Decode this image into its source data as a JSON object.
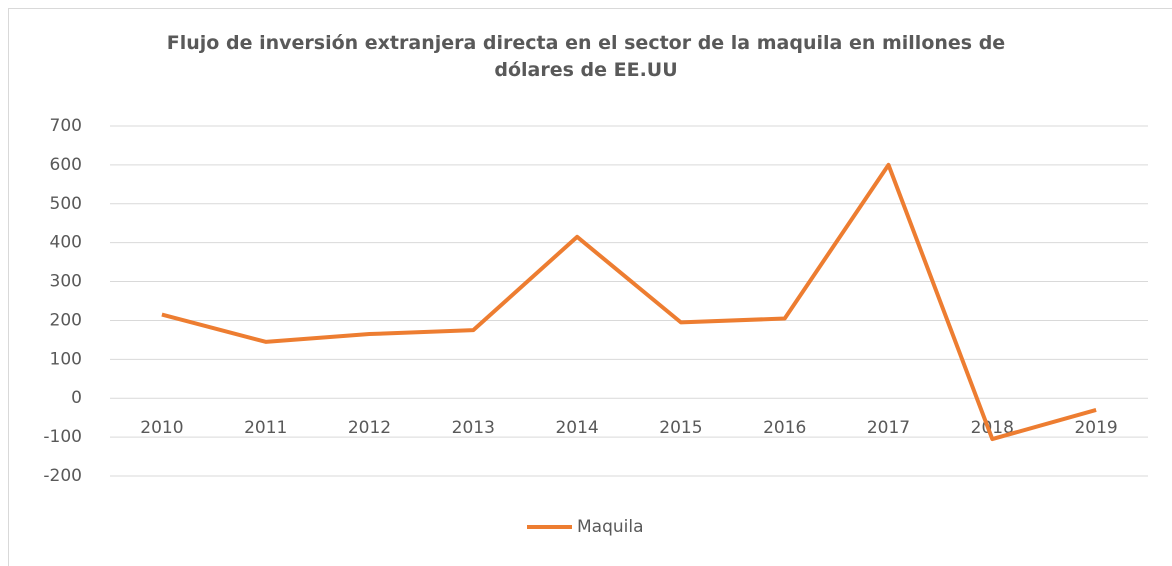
{
  "chart_data": {
    "type": "line",
    "title": "Flujo de inversión extranjera directa en el sector de la maquila en millones de dólares de EE.UU",
    "categories": [
      "2010",
      "2011",
      "2012",
      "2013",
      "2014",
      "2015",
      "2016",
      "2017",
      "2018",
      "2019"
    ],
    "series": [
      {
        "name": "Maquila",
        "color": "#ed7d31",
        "values": [
          215,
          145,
          165,
          175,
          415,
          195,
          205,
          600,
          -105,
          -30
        ]
      }
    ],
    "ylim": [
      -200,
      700
    ],
    "yticks": [
      -200,
      -100,
      0,
      100,
      200,
      300,
      400,
      500,
      600,
      700
    ],
    "grid": true,
    "legend": "bottom"
  }
}
